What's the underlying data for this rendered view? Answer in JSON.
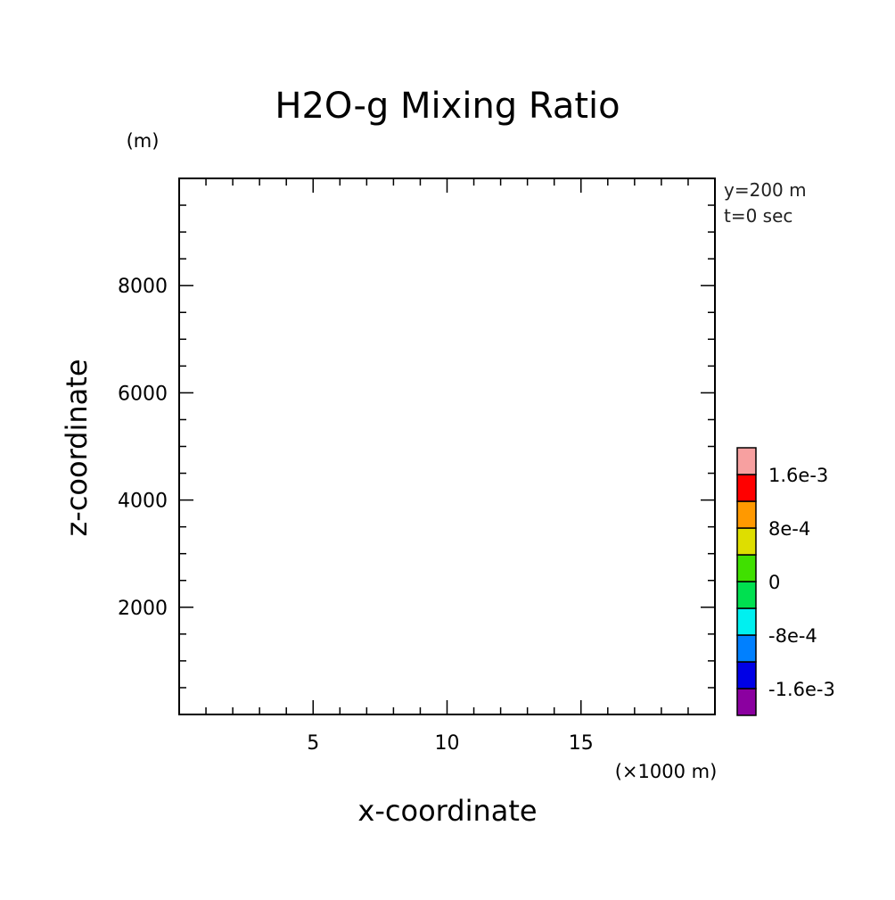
{
  "chart_data": {
    "type": "heatmap",
    "title": "H2O-g Mixing Ratio",
    "xlabel": "x-coordinate",
    "ylabel": "z-coordinate",
    "x_unit": "(×1000 m)",
    "y_unit": "(m)",
    "xlim": [
      0,
      20
    ],
    "ylim": [
      0,
      10000
    ],
    "x_major_ticks": [
      5,
      10,
      15
    ],
    "x_tick_labels": [
      "5",
      "10",
      "15"
    ],
    "x_minor_step": 1,
    "y_major_ticks": [
      2000,
      4000,
      6000,
      8000
    ],
    "y_tick_labels": [
      "2000",
      "4000",
      "6000",
      "8000"
    ],
    "y_minor_step": 500,
    "annotations": [
      "y=200 m",
      "t=0 sec"
    ],
    "field_values": [],
    "colorbar": {
      "colors": [
        "#8b00a0",
        "#0000e6",
        "#0080ff",
        "#00f0f0",
        "#00e050",
        "#40e000",
        "#dede00",
        "#ff9900",
        "#ff0000",
        "#f7a0a0"
      ],
      "levels": [
        -0.002,
        -0.0016,
        -0.0012,
        -0.0008,
        -0.0004,
        0,
        0.0004,
        0.0008,
        0.0012,
        0.0016,
        0.002
      ],
      "tick_values": [
        -0.0016,
        -0.0008,
        0,
        0.0008,
        0.0016
      ],
      "tick_labels": [
        "-1.6e-3",
        "-8e-4",
        "0",
        "8e-4",
        "1.6e-3"
      ]
    }
  }
}
